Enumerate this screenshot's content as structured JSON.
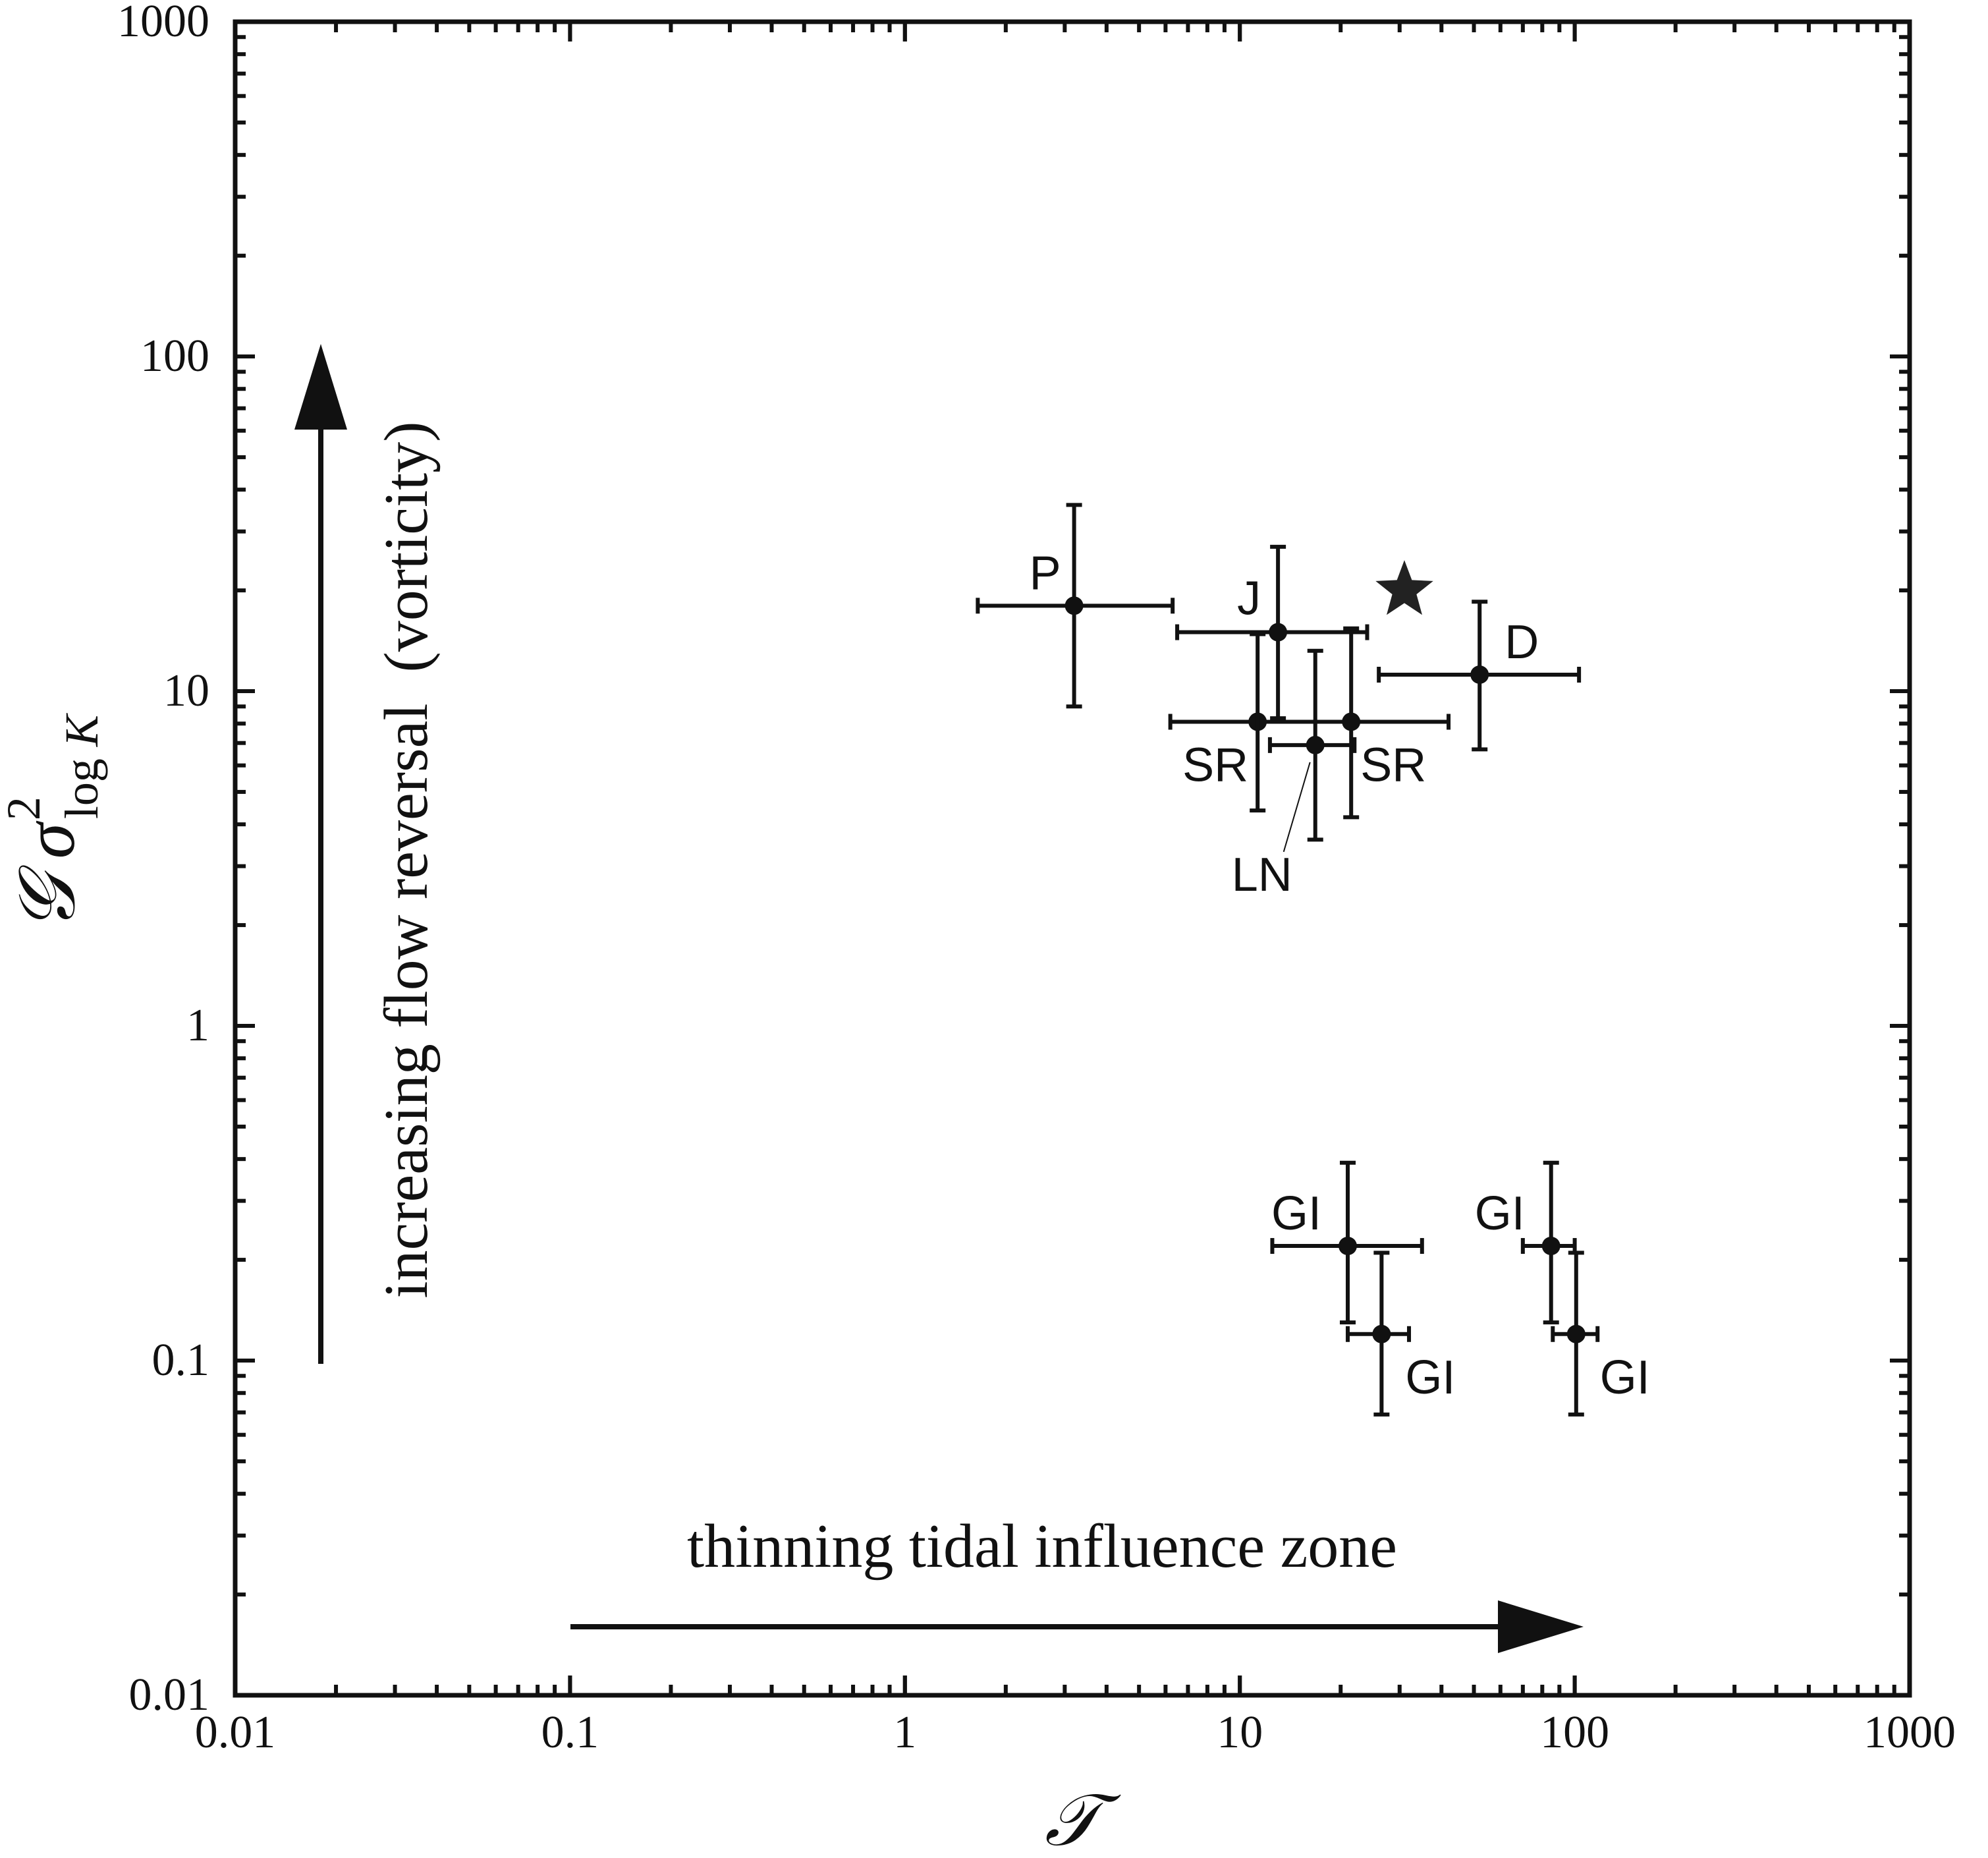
{
  "chart_data": {
    "type": "scatter",
    "x_scale": "log",
    "y_scale": "log",
    "xlim": [
      0.01,
      1000
    ],
    "ylim": [
      0.01,
      1000
    ],
    "xlabel": "𝒯",
    "ylabel": {
      "prefix": "𝒢",
      "sigma": "σ",
      "superscript": "2",
      "subscript_log": "log",
      "subscript_var": "K"
    },
    "x_tick_labels": [
      "0.01",
      "0.1",
      "1",
      "10",
      "100",
      "1000"
    ],
    "y_tick_labels": [
      "0.01",
      "0.1",
      "1",
      "10",
      "100",
      "1000"
    ],
    "grid": false,
    "annotations": {
      "vertical": "increasing flow reversal  (vorticity)",
      "horizontal": "thinning tidal influence zone"
    },
    "points": [
      {
        "label": "P",
        "x": 3.2,
        "y": 18,
        "xerr": [
          1.65,
          6.3
        ],
        "yerr": [
          9.0,
          36
        ]
      },
      {
        "label": "J",
        "x": 13,
        "y": 15,
        "xerr": [
          6.5,
          24
        ],
        "yerr": [
          8.3,
          27
        ]
      },
      {
        "label": "D",
        "x": 52,
        "y": 11.2,
        "xerr": [
          26,
          103
        ],
        "yerr": [
          6.7,
          18.5
        ]
      },
      {
        "label": "SR",
        "x": 11.3,
        "y": 8.1,
        "xerr": [
          6.2,
          11.3
        ],
        "yerr": [
          4.4,
          14.8
        ]
      },
      {
        "label": "SR",
        "x": 21.5,
        "y": 8.1,
        "xerr": [
          11.3,
          42
        ],
        "yerr": [
          4.2,
          15.4
        ]
      },
      {
        "label": "LN",
        "x": 16.8,
        "y": 6.9,
        "xerr": [
          12.3,
          22
        ],
        "yerr": [
          3.6,
          13.2
        ]
      },
      {
        "label": "GI",
        "x": 21,
        "y": 0.22,
        "xerr": [
          12.5,
          35
        ],
        "yerr": [
          0.13,
          0.39
        ]
      },
      {
        "label": "GI",
        "x": 26.5,
        "y": 0.12,
        "xerr": [
          21,
          32
        ],
        "yerr": [
          0.069,
          0.21
        ]
      },
      {
        "label": "GI",
        "x": 85,
        "y": 0.22,
        "xerr": [
          70,
          100
        ],
        "yerr": [
          0.13,
          0.39
        ]
      },
      {
        "label": "GI",
        "x": 101,
        "y": 0.12,
        "xerr": [
          86,
          117
        ],
        "yerr": [
          0.069,
          0.21
        ]
      }
    ],
    "star": {
      "x": 31,
      "y": 20
    }
  }
}
